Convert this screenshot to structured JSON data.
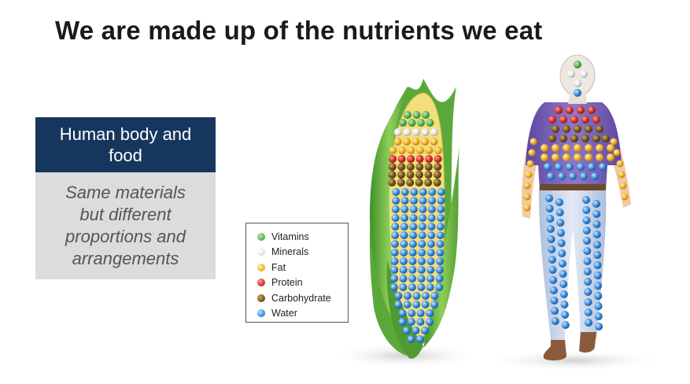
{
  "slide": {
    "title": "We are made up of the nutrients we eat"
  },
  "card": {
    "heading": "Human body and food",
    "body": "Same materials but different proportions and arrangements"
  },
  "legend": {
    "items": [
      {
        "label": "Vitamins",
        "color": "#5cb85c"
      },
      {
        "label": "Minerals",
        "color": "#e6e6e6"
      },
      {
        "label": "Fat",
        "color": "#f0b429"
      },
      {
        "label": "Protein",
        "color": "#d9342b"
      },
      {
        "label": "Carbohydrate",
        "color": "#7a5a1e"
      },
      {
        "label": "Water",
        "color": "#3d8fe0"
      }
    ]
  },
  "colors": {
    "card_heading_bg": "#17365d",
    "card_body_bg": "#dcdcde",
    "corn_husk": "#6db33f",
    "corn_kernel": "#f5e27a",
    "shirt": "#7b63b5",
    "pants": "#c9d6ea",
    "skin": "#f1c9a5"
  }
}
